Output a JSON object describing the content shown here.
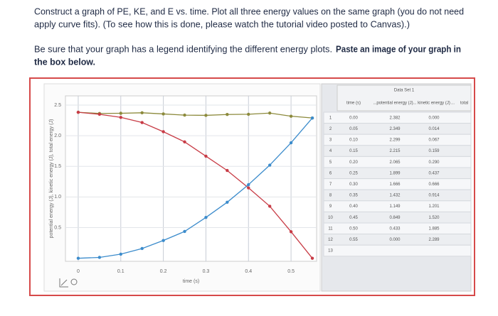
{
  "instructions": {
    "paragraph1": [
      "Construct a graph of PE, KE, and E vs. time.  Plot all three energy values on the same graph (you do not need",
      "apply curve fits).  (To see how this is done, please watch the tutorial video posted to Canvas).)"
    ],
    "paragraph2": {
      "plain": "Be sure that your graph has a legend identifying the different energy plots.",
      "bold": [
        "Paste an image of your graph in",
        "the box below."
      ]
    }
  },
  "chart_data": {
    "type": "line",
    "x_label": "time (s)",
    "y_label": "potential energy (J), kinetic energy (J), total energy (J)",
    "x": [
      0,
      0.05,
      0.1,
      0.15,
      0.2,
      0.25,
      0.3,
      0.35,
      0.4,
      0.45,
      0.5,
      0.55
    ],
    "series": [
      {
        "color": "#8c8a3c",
        "values": [
          2.382,
          2.363,
          2.366,
          2.374,
          2.355,
          2.336,
          2.332,
          2.346,
          2.35,
          2.369,
          2.318,
          2.289
        ]
      },
      {
        "color": "#c83c46",
        "values": [
          2.382,
          2.349,
          2.299,
          2.215,
          2.065,
          1.899,
          1.666,
          1.432,
          1.149,
          0.849,
          0.433,
          0.0
        ]
      },
      {
        "color": "#3c8ccc",
        "values": [
          0.0,
          0.014,
          0.067,
          0.159,
          0.29,
          0.437,
          0.666,
          0.914,
          1.201,
          1.52,
          1.885,
          2.289
        ]
      }
    ],
    "xlim": [
      -0.03,
      0.56
    ],
    "ylim": [
      -0.05,
      2.65
    ],
    "xticks": [
      0,
      0.1,
      0.2,
      0.3,
      0.4,
      0.5
    ],
    "yticks": [
      0.5,
      {
        "value": 1,
        "label": "1.0"
      },
      1.5,
      {
        "value": 2,
        "label": "2.0"
      },
      2.5
    ],
    "grid": true
  },
  "table": {
    "title": "Data Set 1",
    "headers": [
      "time (s)",
      "...",
      "potential energy (J)",
      "...",
      "kinetic energy (J)",
      "...",
      "total"
    ],
    "rows": [
      [
        "1",
        "0.00",
        "2.382",
        "0.000"
      ],
      [
        "2",
        "0.05",
        "2.349",
        "0.014"
      ],
      [
        "3",
        "0.10",
        "2.299",
        "0.067"
      ],
      [
        "4",
        "0.15",
        "2.215",
        "0.159"
      ],
      [
        "5",
        "0.20",
        "2.065",
        "0.290"
      ],
      [
        "6",
        "0.25",
        "1.899",
        "0.437"
      ],
      [
        "7",
        "0.30",
        "1.666",
        "0.666"
      ],
      [
        "8",
        "0.35",
        "1.432",
        "0.914"
      ],
      [
        "9",
        "0.40",
        "1.149",
        "1.201"
      ],
      [
        "10",
        "0.45",
        "0.849",
        "1.520"
      ],
      [
        "11",
        "0.50",
        "0.433",
        "1.885"
      ],
      [
        "12",
        "0.55",
        "0.000",
        "2.289"
      ],
      [
        "13"
      ]
    ]
  }
}
